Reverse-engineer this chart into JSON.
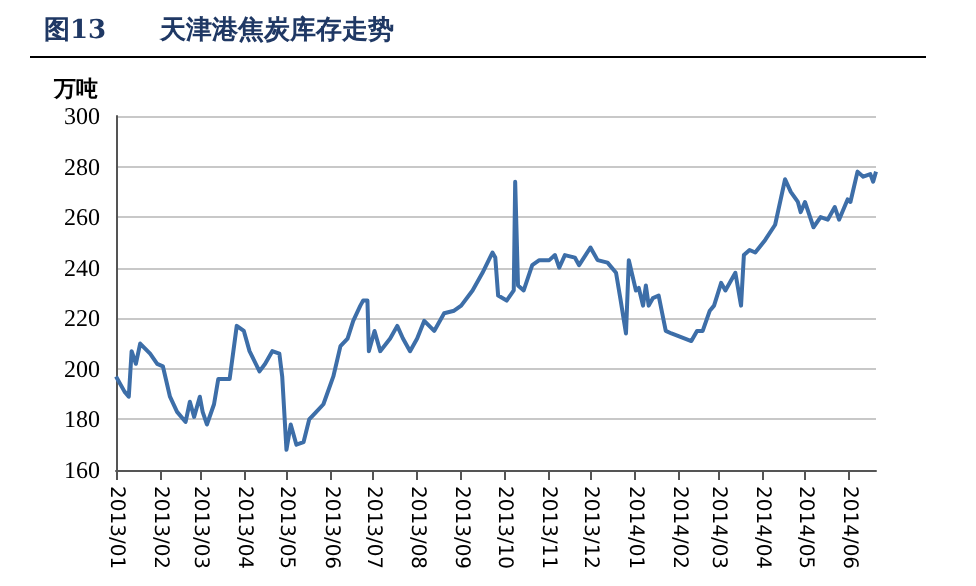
{
  "chart_data": {
    "type": "line",
    "title": "图13      天津港焦炭库存走势",
    "ylabel": "万吨",
    "x": [
      "2013-01-01",
      "2013-01-07",
      "2013-01-10",
      "2013-01-12",
      "2013-01-15",
      "2013-01-18",
      "2013-01-25",
      "2013-01-30",
      "2013-02-03",
      "2013-02-08",
      "2013-02-13",
      "2013-02-19",
      "2013-02-22",
      "2013-02-25",
      "2013-03-01",
      "2013-03-03",
      "2013-03-06",
      "2013-03-11",
      "2013-03-14",
      "2013-03-22",
      "2013-03-27",
      "2013-04-01",
      "2013-04-05",
      "2013-04-12",
      "2013-04-16",
      "2013-04-21",
      "2013-04-26",
      "2013-04-28",
      "2013-05-01",
      "2013-05-04",
      "2013-05-08",
      "2013-05-13",
      "2013-05-17",
      "2013-05-22",
      "2013-05-27",
      "2013-06-03",
      "2013-06-08",
      "2013-06-13",
      "2013-06-17",
      "2013-06-22",
      "2013-06-24",
      "2013-06-27",
      "2013-06-28",
      "2013-07-02",
      "2013-07-06",
      "2013-07-13",
      "2013-07-18",
      "2013-07-22",
      "2013-07-27",
      "2013-08-01",
      "2013-08-06",
      "2013-08-13",
      "2013-08-20",
      "2013-08-27",
      "2013-09-01",
      "2013-09-09",
      "2013-09-16",
      "2013-09-23",
      "2013-09-25",
      "2013-09-27",
      "2013-10-03",
      "2013-10-08",
      "2013-10-09",
      "2013-10-11",
      "2013-10-15",
      "2013-10-21",
      "2013-10-26",
      "2013-11-02",
      "2013-11-06",
      "2013-11-09",
      "2013-11-13",
      "2013-11-20",
      "2013-11-23",
      "2013-12-01",
      "2013-12-06",
      "2013-12-13",
      "2013-12-19",
      "2013-12-22",
      "2013-12-26",
      "2013-12-28",
      "2014-01-02",
      "2014-01-04",
      "2014-01-07",
      "2014-01-09",
      "2014-01-11",
      "2014-01-14",
      "2014-01-18",
      "2014-01-23",
      "2014-01-27",
      "2014-02-10",
      "2014-02-14",
      "2014-02-18",
      "2014-02-23",
      "2014-02-26",
      "2014-03-03",
      "2014-03-06",
      "2014-03-13",
      "2014-03-17",
      "2014-03-19",
      "2014-03-23",
      "2014-03-27",
      "2014-04-03",
      "2014-04-10",
      "2014-04-17",
      "2014-04-21",
      "2014-04-26",
      "2014-04-28",
      "2014-05-01",
      "2014-05-07",
      "2014-05-12",
      "2014-05-17",
      "2014-05-22",
      "2014-05-25",
      "2014-05-31",
      "2014-06-02",
      "2014-06-07",
      "2014-06-11",
      "2014-06-16",
      "2014-06-18",
      "2014-06-20"
    ],
    "series": [
      {
        "color": "#3d6ea8",
        "values": [
          197,
          191,
          189,
          207,
          202,
          210,
          206,
          202,
          201,
          189,
          183,
          179,
          187,
          181,
          189,
          183,
          178,
          186,
          196,
          196,
          217,
          215,
          207,
          199,
          202,
          207,
          206,
          197,
          168,
          178,
          170,
          171,
          180,
          183,
          186,
          197,
          209,
          212,
          219,
          225,
          227,
          227,
          207,
          215,
          207,
          212,
          217,
          212,
          207,
          212,
          219,
          215,
          222,
          223,
          225,
          231,
          238,
          246,
          244,
          229,
          227,
          231,
          274,
          233,
          231,
          241,
          243,
          243,
          245,
          240,
          245,
          244,
          241,
          248,
          243,
          242,
          238,
          228,
          214,
          243,
          231,
          232,
          225,
          233,
          225,
          228,
          229,
          215,
          214,
          211,
          215,
          215,
          223,
          225,
          234,
          231,
          238,
          225,
          245,
          247,
          246,
          251,
          257,
          275,
          270,
          266,
          262,
          266,
          256,
          260,
          259,
          264,
          259,
          267,
          266,
          278,
          276,
          277,
          274,
          278
        ]
      }
    ],
    "xlim": [
      "2013-01-01",
      "2014-06-20"
    ],
    "xticks": [
      {
        "value": "2013-01-01",
        "label": "2013/01"
      },
      {
        "value": "2013-02-01",
        "label": "2013/02"
      },
      {
        "value": "2013-03-01",
        "label": "2013/03"
      },
      {
        "value": "2013-04-01",
        "label": "2013/04"
      },
      {
        "value": "2013-05-01",
        "label": "2013/05"
      },
      {
        "value": "2013-06-01",
        "label": "2013/06"
      },
      {
        "value": "2013-07-01",
        "label": "2013/07"
      },
      {
        "value": "2013-08-01",
        "label": "2013/08"
      },
      {
        "value": "2013-09-01",
        "label": "2013/09"
      },
      {
        "value": "2013-10-01",
        "label": "2013/10"
      },
      {
        "value": "2013-11-01",
        "label": "2013/11"
      },
      {
        "value": "2013-12-01",
        "label": "2013/12"
      },
      {
        "value": "2014-01-01",
        "label": "2014/01"
      },
      {
        "value": "2014-02-01",
        "label": "2014/02"
      },
      {
        "value": "2014-03-01",
        "label": "2014/03"
      },
      {
        "value": "2014-04-01",
        "label": "2014/04"
      },
      {
        "value": "2014-05-01",
        "label": "2014/05"
      },
      {
        "value": "2014-06-01",
        "label": "2014/06"
      }
    ],
    "ylim": [
      160,
      300
    ],
    "yticks": [
      160,
      180,
      200,
      220,
      240,
      260,
      280,
      300
    ],
    "grid": "y",
    "marker": "none",
    "line_style": "solid"
  }
}
